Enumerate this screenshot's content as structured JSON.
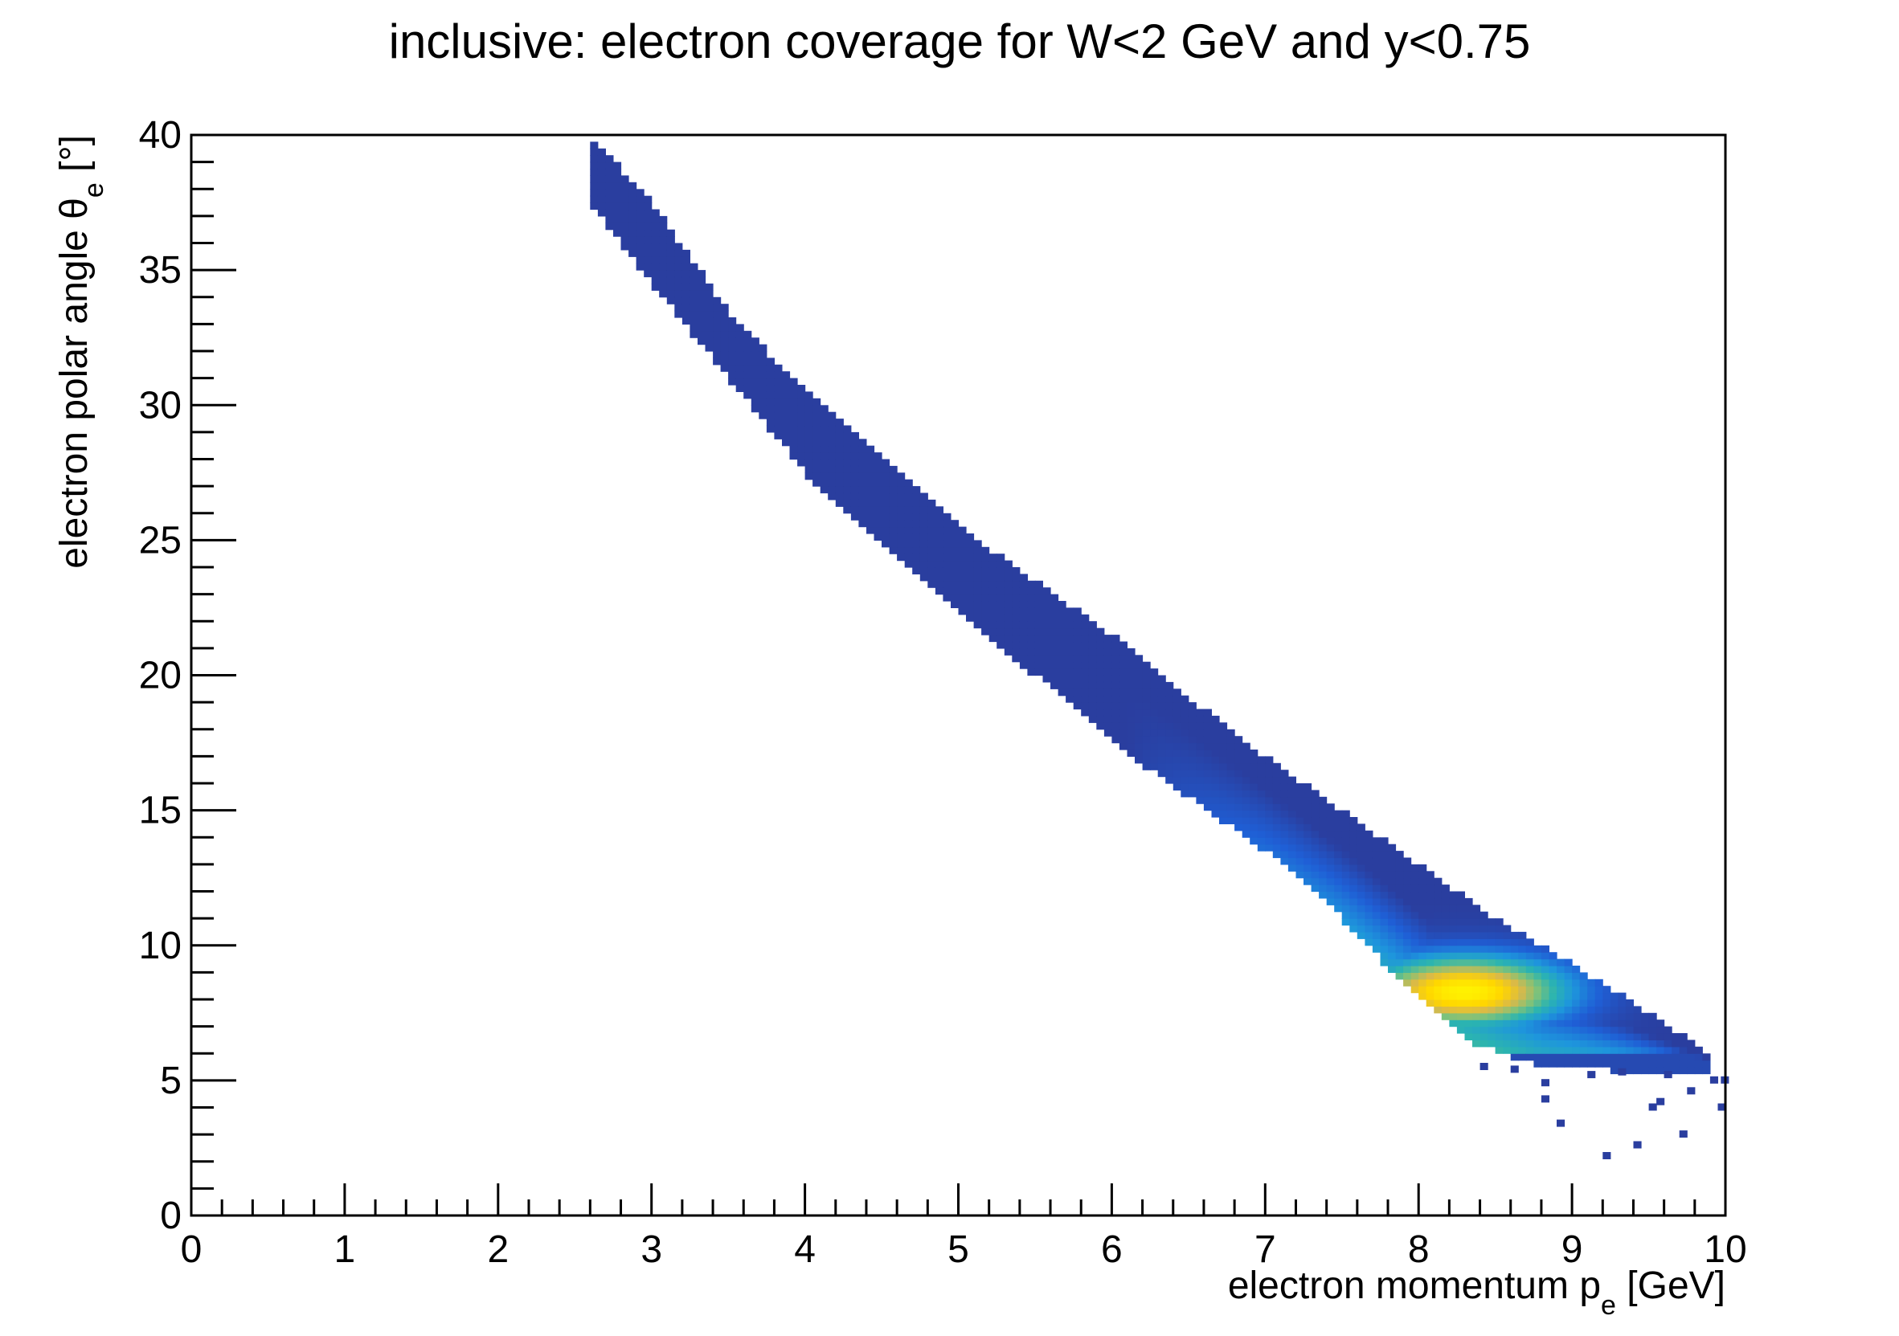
{
  "chart_data": {
    "type": "heatmap",
    "title": "inclusive: electron coverage for W<2 GeV and y<0.75",
    "xlabel": {
      "main": "electron momentum p",
      "sub": "e",
      "unit": " [GeV]"
    },
    "ylabel": {
      "main": "electron polar angle θ",
      "sub": "e",
      "unit": " [°]"
    },
    "xlim": [
      0,
      10
    ],
    "ylim": [
      0,
      40
    ],
    "x_ticks": [
      "0",
      "1",
      "2",
      "3",
      "4",
      "5",
      "6",
      "7",
      "8",
      "9",
      "10"
    ],
    "y_ticks": [
      "0",
      "5",
      "10",
      "15",
      "20",
      "25",
      "30",
      "35",
      "40"
    ],
    "grid": false,
    "colorscale": [
      "#2a3e9f",
      "#1f5fd6",
      "#1e96dc",
      "#2bb4b0",
      "#7ec27a",
      "#d9b94a",
      "#ffd500",
      "#fff200"
    ],
    "band": {
      "x_range": [
        2.6,
        9.9
      ],
      "upper_edge": [
        {
          "x": 2.6,
          "y": 40
        },
        {
          "x": 3.0,
          "y": 37.5
        },
        {
          "x": 3.5,
          "y": 33.5
        },
        {
          "x": 4.0,
          "y": 30.5
        },
        {
          "x": 4.5,
          "y": 28.0
        },
        {
          "x": 5.0,
          "y": 25.5
        },
        {
          "x": 5.5,
          "y": 23.5
        },
        {
          "x": 6.0,
          "y": 21.5
        },
        {
          "x": 6.5,
          "y": 19.2
        },
        {
          "x": 7.0,
          "y": 17.0
        },
        {
          "x": 7.5,
          "y": 15.0
        },
        {
          "x": 8.0,
          "y": 13.0
        },
        {
          "x": 8.5,
          "y": 11.0
        },
        {
          "x": 9.0,
          "y": 9.3
        },
        {
          "x": 9.5,
          "y": 7.5
        },
        {
          "x": 9.9,
          "y": 6.0
        }
      ],
      "lower_edge": [
        {
          "x": 2.6,
          "y": 37.5
        },
        {
          "x": 3.0,
          "y": 34.5
        },
        {
          "x": 3.5,
          "y": 31.0
        },
        {
          "x": 4.0,
          "y": 27.5
        },
        {
          "x": 4.5,
          "y": 24.8
        },
        {
          "x": 5.0,
          "y": 22.4
        },
        {
          "x": 5.5,
          "y": 20.0
        },
        {
          "x": 6.0,
          "y": 17.5
        },
        {
          "x": 6.5,
          "y": 15.5
        },
        {
          "x": 7.0,
          "y": 13.5
        },
        {
          "x": 7.5,
          "y": 11.0
        },
        {
          "x": 8.0,
          "y": 8.0
        },
        {
          "x": 8.3,
          "y": 6.5
        },
        {
          "x": 8.8,
          "y": 5.5
        },
        {
          "x": 9.5,
          "y": 5.3
        },
        {
          "x": 9.9,
          "y": 5.3
        }
      ],
      "hotspot": {
        "x": 8.3,
        "y": 8.3,
        "sx": 0.45,
        "sy": 0.9
      }
    },
    "scatter_bins": [
      {
        "x": 8.8,
        "y": 4.8
      },
      {
        "x": 8.8,
        "y": 4.2
      },
      {
        "x": 8.9,
        "y": 3.3
      },
      {
        "x": 9.2,
        "y": 2.1
      },
      {
        "x": 9.4,
        "y": 2.5
      },
      {
        "x": 9.5,
        "y": 3.9
      },
      {
        "x": 9.55,
        "y": 4.1
      },
      {
        "x": 9.7,
        "y": 2.9
      },
      {
        "x": 9.75,
        "y": 4.5
      },
      {
        "x": 9.9,
        "y": 4.9
      },
      {
        "x": 9.95,
        "y": 3.9
      },
      {
        "x": 9.97,
        "y": 4.9
      },
      {
        "x": 9.1,
        "y": 5.1
      },
      {
        "x": 9.3,
        "y": 5.2
      },
      {
        "x": 9.6,
        "y": 5.1
      },
      {
        "x": 8.6,
        "y": 5.3
      },
      {
        "x": 8.4,
        "y": 5.4
      }
    ],
    "stray_bins": [
      {
        "x": 2.72,
        "y": 39.3
      }
    ]
  }
}
